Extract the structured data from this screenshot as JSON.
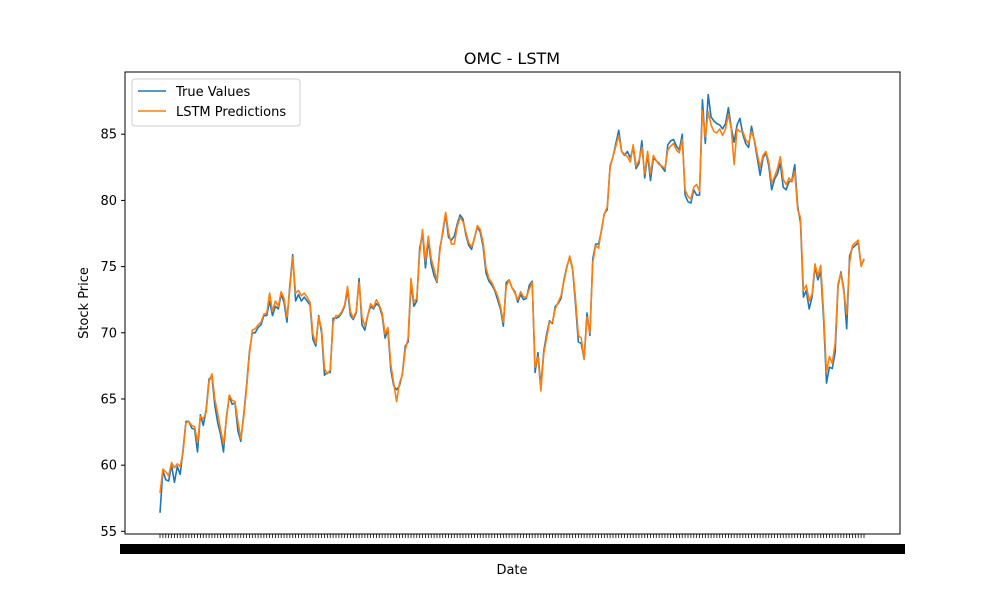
{
  "chart_data": {
    "type": "line",
    "title": "OMC - LSTM",
    "xlabel": "Date",
    "ylabel": "Stock Price",
    "ylim": [
      54.8,
      89.7
    ],
    "yticks": [
      55,
      60,
      65,
      70,
      75,
      80,
      85
    ],
    "legend_position": "top-left",
    "grid": false,
    "colors": {
      "true": "#1f77b4",
      "pred": "#ff7f0e"
    },
    "series": [
      {
        "name": "True Values",
        "values": [
          56.4,
          59.6,
          58.9,
          58.8,
          60.0,
          58.7,
          59.9,
          59.3,
          61.2,
          63.3,
          63.3,
          62.8,
          62.7,
          61.0,
          63.8,
          63.0,
          64.2,
          66.5,
          66.7,
          64.5,
          63.2,
          62.3,
          61.0,
          63.6,
          65.2,
          64.6,
          64.7,
          62.6,
          61.8,
          63.8,
          66.0,
          68.6,
          70.0,
          70.0,
          70.4,
          70.6,
          71.3,
          71.3,
          72.4,
          71.3,
          72.0,
          71.8,
          72.9,
          72.3,
          70.8,
          73.6,
          75.9,
          72.4,
          72.9,
          72.4,
          72.7,
          72.4,
          72.1,
          69.5,
          69.0,
          71.3,
          70.0,
          66.8,
          67.0,
          67.0,
          71.1,
          71.1,
          71.2,
          71.5,
          72.0,
          73.2,
          71.3,
          71.0,
          71.5,
          74.1,
          70.6,
          70.2,
          71.3,
          72.0,
          71.8,
          72.2,
          72.0,
          71.3,
          69.6,
          70.2,
          67.2,
          66.0,
          65.7,
          66.0,
          66.9,
          69.0,
          69.3,
          73.8,
          72.0,
          72.4,
          76.4,
          77.5,
          74.9,
          77.0,
          75.2,
          74.3,
          73.8,
          76.4,
          77.5,
          79.0,
          77.2,
          77.0,
          77.3,
          78.2,
          78.9,
          78.6,
          77.4,
          76.6,
          76.3,
          77.2,
          78.0,
          77.6,
          76.5,
          74.5,
          73.9,
          73.6,
          73.2,
          72.5,
          71.8,
          70.5,
          73.8,
          74.0,
          73.4,
          73.1,
          72.3,
          72.9,
          72.5,
          72.6,
          73.6,
          73.9,
          67.0,
          68.5,
          65.9,
          68.6,
          69.9,
          70.9,
          70.7,
          72.0,
          72.2,
          72.6,
          74.0,
          75.0,
          75.7,
          74.8,
          72.2,
          69.3,
          69.2,
          68.0,
          71.5,
          69.8,
          75.6,
          76.7,
          76.7,
          77.7,
          79.0,
          79.3,
          82.6,
          83.3,
          84.3,
          85.3,
          83.7,
          83.4,
          83.7,
          83.2,
          84.0,
          82.4,
          82.8,
          84.5,
          81.7,
          83.5,
          81.5,
          83.2,
          83.0,
          82.8,
          82.5,
          82.2,
          84.2,
          84.5,
          84.6,
          84.1,
          83.8,
          85.0,
          80.4,
          79.9,
          79.8,
          80.8,
          80.4,
          80.4,
          87.6,
          84.3,
          88.0,
          86.3,
          86.0,
          85.8,
          85.7,
          85.4,
          85.8,
          87.0,
          85.5,
          84.4,
          85.7,
          86.2,
          85.0,
          84.3,
          84.0,
          85.6,
          84.5,
          83.2,
          81.9,
          83.2,
          83.6,
          82.6,
          80.8,
          81.6,
          82.0,
          82.8,
          81.0,
          80.8,
          81.4,
          81.5,
          82.7,
          79.6,
          78.3,
          72.7,
          73.2,
          71.8,
          72.7,
          75.0,
          74.0,
          74.6,
          71.0,
          66.2,
          67.4,
          67.3,
          68.5,
          73.5,
          74.6,
          73.3,
          70.3,
          75.8,
          76.4,
          76.6,
          76.8,
          75.1,
          75.5
        ]
      },
      {
        "name": "LSTM Predictions",
        "values": [
          57.9,
          59.7,
          59.5,
          59.2,
          60.2,
          59.8,
          60.1,
          59.9,
          61.0,
          63.2,
          63.3,
          63.0,
          62.9,
          61.7,
          63.7,
          63.5,
          64.0,
          66.3,
          66.9,
          65.0,
          63.9,
          62.7,
          61.6,
          63.4,
          65.3,
          64.9,
          64.8,
          63.3,
          62.0,
          63.6,
          65.8,
          68.4,
          70.2,
          70.3,
          70.6,
          70.8,
          71.4,
          71.5,
          73.0,
          71.6,
          72.4,
          72.0,
          73.1,
          72.6,
          71.2,
          73.3,
          75.7,
          73.0,
          73.2,
          72.8,
          73.0,
          72.7,
          72.3,
          69.9,
          69.2,
          71.2,
          70.3,
          67.3,
          66.9,
          67.2,
          70.8,
          71.3,
          71.3,
          71.6,
          72.1,
          73.5,
          71.6,
          71.1,
          71.6,
          73.8,
          71.2,
          70.5,
          71.3,
          72.2,
          71.9,
          72.5,
          72.1,
          71.5,
          69.9,
          70.4,
          67.6,
          66.2,
          64.8,
          66.2,
          66.8,
          68.7,
          69.6,
          74.1,
          72.3,
          72.6,
          76.0,
          77.8,
          75.4,
          77.3,
          75.6,
          74.8,
          73.9,
          76.2,
          77.7,
          79.1,
          77.6,
          76.7,
          76.7,
          78.0,
          78.7,
          78.4,
          77.6,
          76.8,
          76.5,
          77.1,
          78.1,
          77.8,
          76.8,
          74.9,
          74.1,
          73.8,
          73.3,
          72.8,
          72.0,
          70.8,
          73.5,
          74.0,
          73.4,
          73.0,
          72.5,
          73.1,
          72.7,
          72.7,
          73.3,
          73.8,
          67.4,
          68.2,
          65.6,
          68.4,
          69.6,
          70.8,
          70.8,
          71.8,
          72.3,
          72.8,
          73.9,
          74.9,
          75.8,
          74.9,
          72.6,
          69.8,
          69.6,
          68.0,
          71.2,
          70.0,
          75.3,
          76.6,
          76.4,
          77.8,
          79.0,
          79.5,
          82.5,
          83.3,
          84.1,
          84.9,
          83.7,
          83.5,
          83.3,
          82.9,
          84.2,
          82.6,
          83.0,
          84.0,
          82.0,
          83.7,
          82.0,
          83.4,
          83.0,
          82.7,
          82.6,
          82.4,
          83.8,
          84.1,
          84.3,
          83.8,
          83.6,
          84.6,
          80.8,
          80.3,
          80.1,
          81.0,
          81.2,
          80.7,
          86.8,
          84.8,
          86.7,
          85.7,
          85.2,
          85.1,
          85.4,
          84.9,
          85.4,
          86.5,
          85.4,
          82.7,
          85.4,
          85.2,
          85.2,
          84.6,
          84.3,
          85.2,
          84.6,
          83.5,
          82.5,
          83.4,
          83.7,
          82.9,
          81.3,
          81.8,
          82.4,
          83.3,
          81.6,
          81.2,
          81.7,
          81.4,
          82.2,
          79.3,
          78.7,
          73.2,
          73.6,
          72.4,
          72.9,
          75.2,
          74.3,
          75.1,
          71.5,
          67.0,
          68.2,
          67.7,
          69.2,
          73.7,
          74.5,
          73.1,
          71.4,
          75.3,
          76.6,
          76.8,
          77.0,
          75.0,
          75.6
        ]
      }
    ]
  }
}
